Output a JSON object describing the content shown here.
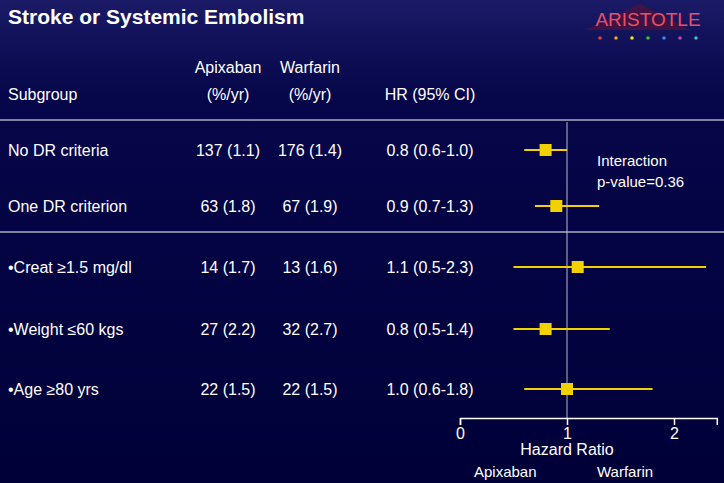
{
  "chart_data": {
    "type": "forest",
    "title": "Stroke or Systemic Embolism",
    "logo": "ARISTOTLE",
    "headers": {
      "subgroup": "Subgroup",
      "apixaban": [
        "Apixaban",
        "(%/yr)"
      ],
      "warfarin": [
        "Warfarin",
        "(%/yr)"
      ],
      "hr": "HR (95% CI)"
    },
    "categories": [
      "No DR criteria",
      "One DR criterion",
      "•Creat ≥1.5 mg/dl",
      "•Weight ≤60 kgs",
      "•Age ≥80 yrs"
    ],
    "apixaban": [
      "137 (1.1)",
      "63 (1.8)",
      "14 (1.7)",
      "27 (2.2)",
      "22 (1.5)"
    ],
    "warfarin": [
      "176 (1.4)",
      "67 (1.9)",
      "13 (1.6)",
      "32 (2.7)",
      "22 (1.5)"
    ],
    "values": [
      0.8,
      0.9,
      1.1,
      0.8,
      1.0
    ],
    "lower": [
      0.6,
      0.7,
      0.5,
      0.5,
      0.6
    ],
    "upper": [
      1.0,
      1.3,
      2.3,
      1.4,
      1.8
    ],
    "value_labels": [
      "0.8 (0.6-1.0)",
      "0.9 (0.7-1.3)",
      "1.1 (0.5-2.3)",
      "0.8 (0.5-1.4)",
      "1.0 (0.6-1.8)"
    ],
    "xlim": [
      0,
      2.4
    ],
    "xticks": [
      0,
      1,
      2
    ],
    "reference_line": 1,
    "x_label": "Hazard Ratio",
    "favors": [
      "Apixaban",
      "Warfarin"
    ],
    "annotation": [
      "Interaction",
      "p-value=0.36"
    ],
    "color": "#f2d100"
  }
}
